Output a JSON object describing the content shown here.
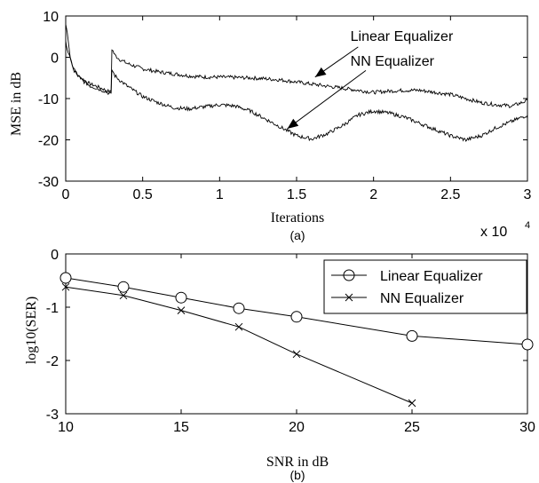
{
  "chart_data": [
    {
      "type": "line",
      "caption": "(a)",
      "xlabel": "Iterations",
      "ylabel": "MSE in dB",
      "x_multiplier": "x 10",
      "x_multiplier_exp": "4",
      "xlim": [
        0,
        3
      ],
      "ylim": [
        -30,
        10
      ],
      "xticks": [
        "0",
        "0.5",
        "1",
        "1.5",
        "2",
        "2.5",
        "3"
      ],
      "yticks": [
        "10",
        "0",
        "-10",
        "-20",
        "-30"
      ],
      "grid": false,
      "series": [
        {
          "name": "Linear Equalizer",
          "x": [
            0,
            0.01,
            0.03,
            0.05,
            0.08,
            0.12,
            0.16,
            0.2,
            0.25,
            0.295,
            0.3,
            0.32,
            0.35,
            0.4,
            0.5,
            0.6,
            0.7,
            0.8,
            0.9,
            1.0,
            1.1,
            1.2,
            1.3,
            1.4,
            1.5,
            1.6,
            1.7,
            1.8,
            1.9,
            2.0,
            2.1,
            2.2,
            2.3,
            2.4,
            2.5,
            2.6,
            2.7,
            2.8,
            2.9,
            3.0
          ],
          "y": [
            8,
            6,
            0,
            -3,
            -4.5,
            -5.5,
            -6.5,
            -7,
            -7.8,
            -8.5,
            2,
            0.5,
            -0.5,
            -1.5,
            -2.8,
            -3.5,
            -4,
            -4.5,
            -4.8,
            -4.8,
            -4.9,
            -5,
            -5.2,
            -5.5,
            -6,
            -6.5,
            -7,
            -7.5,
            -8,
            -8.5,
            -8.2,
            -8,
            -8,
            -8.5,
            -9,
            -10,
            -11,
            -11.5,
            -11.8,
            -10.5
          ]
        },
        {
          "name": "NN Equalizer",
          "x": [
            0,
            0.01,
            0.03,
            0.05,
            0.08,
            0.12,
            0.16,
            0.2,
            0.25,
            0.295,
            0.3,
            0.32,
            0.35,
            0.4,
            0.5,
            0.6,
            0.7,
            0.8,
            0.9,
            1.0,
            1.1,
            1.2,
            1.3,
            1.4,
            1.5,
            1.6,
            1.7,
            1.8,
            1.9,
            2.0,
            2.1,
            2.2,
            2.3,
            2.4,
            2.5,
            2.6,
            2.7,
            2.8,
            2.9,
            3.0
          ],
          "y": [
            4,
            2,
            -0.5,
            -2.5,
            -4.5,
            -6,
            -7,
            -7.5,
            -8.2,
            -9,
            -3,
            -4.5,
            -5.5,
            -7,
            -9.5,
            -11,
            -12.2,
            -12.5,
            -12,
            -11.5,
            -11.8,
            -13,
            -15,
            -17,
            -19,
            -19.8,
            -18.5,
            -16.5,
            -14,
            -13,
            -13.5,
            -14.5,
            -16,
            -17.5,
            -19,
            -20,
            -19,
            -17,
            -15.5,
            -14
          ]
        }
      ],
      "annotations": [
        {
          "text": "Linear Equalizer",
          "x": 1.85,
          "y": 4
        },
        {
          "text": "NN Equalizer",
          "x": 1.85,
          "y": -2
        }
      ]
    },
    {
      "type": "line",
      "caption": "(b)",
      "xlabel": "SNR in dB",
      "ylabel": "log10(SER)",
      "xlim": [
        10,
        30
      ],
      "ylim": [
        -3,
        0
      ],
      "xticks": [
        "10",
        "15",
        "20",
        "25",
        "30"
      ],
      "yticks": [
        "0",
        "-1",
        "-2",
        "-3"
      ],
      "grid": false,
      "legend": "top-right",
      "series": [
        {
          "name": "Linear Equalizer",
          "marker": "circle",
          "x": [
            10,
            12.5,
            15,
            17.5,
            20,
            25,
            30
          ],
          "y": [
            -0.45,
            -0.62,
            -0.82,
            -1.02,
            -1.18,
            -1.54,
            -1.7
          ]
        },
        {
          "name": "NN Equalizer",
          "marker": "x",
          "x": [
            10,
            12.5,
            15,
            17.5,
            20,
            25
          ],
          "y": [
            -0.62,
            -0.78,
            -1.06,
            -1.37,
            -1.88,
            -2.8
          ]
        }
      ]
    }
  ]
}
